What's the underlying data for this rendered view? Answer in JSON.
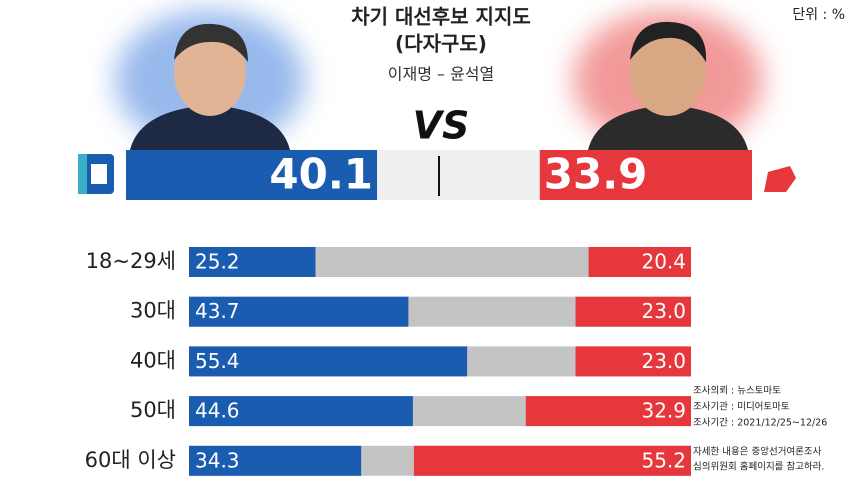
{
  "header": {
    "title": "차기 대선후보 지지도",
    "subtitle": "(다자구도)",
    "candidates": "이재명 – 윤석열",
    "versus": "VS",
    "unit": "단위 : %"
  },
  "chart_data": [
    {
      "type": "versus",
      "values": [
        40.1,
        33.9
      ],
      "colors": [
        "#1a5cb0",
        "#e6373c"
      ],
      "xlim": [
        0,
        100
      ]
    },
    {
      "type": "diverging_bar",
      "categories": [
        "18~29세",
        "30대",
        "40대",
        "50대",
        "60대 이상"
      ],
      "xlim": [
        0,
        100
      ],
      "series": [
        {
          "color": "#1a5cb0",
          "values": [
            25.2,
            43.7,
            55.4,
            44.6,
            34.3
          ],
          "value_labels": [
            "25.2",
            "43.7",
            "55.4",
            "44.6",
            "34.3"
          ]
        },
        {
          "color": "#e6373c",
          "values": [
            20.4,
            23.0,
            23.0,
            32.9,
            55.2
          ],
          "value_labels": [
            "20.4",
            "23.0",
            "23.0",
            "32.9",
            "55.2"
          ]
        }
      ]
    }
  ],
  "notes": [
    "조사의뢰 : 뉴스토마토",
    "조사기관 : 미디어토마토",
    "조사기간 : 2021/12/25~12/26",
    "자세한 내용은 중앙선거여론조사",
    "심의위원회 홈페이지를 참고하라."
  ]
}
